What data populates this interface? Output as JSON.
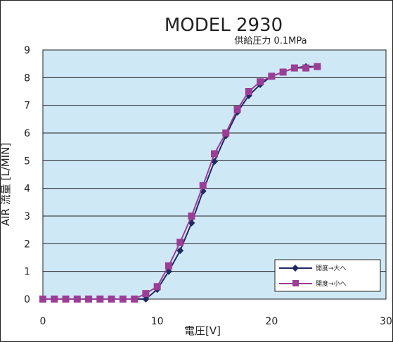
{
  "chart_data": {
    "type": "line",
    "title": "MODEL 2930",
    "subtitle": "供給圧力 0.1MPa",
    "xlabel": "電圧[V]",
    "ylabel": "AIR 流量 [L/MIN]",
    "xlim": [
      0,
      30
    ],
    "ylim": [
      0,
      9
    ],
    "xticks": [
      0,
      10,
      20,
      30
    ],
    "yticks": [
      0,
      1,
      2,
      3,
      4,
      5,
      6,
      7,
      8,
      9
    ],
    "grid": true,
    "legend_position": "bottom-right",
    "colors": {
      "plot_background": "#cfe8f6",
      "grid": "#222222",
      "series1": "#1f2a60",
      "series2": "#9b3d96"
    },
    "series": [
      {
        "name": "開度→大へ",
        "marker": "diamond",
        "x": [
          0,
          1,
          2,
          3,
          4,
          5,
          6,
          7,
          8,
          9,
          10,
          11,
          12,
          13,
          14,
          15,
          16,
          17,
          18,
          19,
          20,
          21,
          22,
          23,
          24
        ],
        "y": [
          0,
          0,
          0,
          0,
          0,
          0,
          0,
          0,
          0,
          0,
          0.35,
          1.0,
          1.75,
          2.75,
          3.9,
          4.97,
          5.9,
          6.75,
          7.35,
          7.75,
          8.05,
          8.2,
          8.35,
          8.4,
          8.4
        ]
      },
      {
        "name": "開度→小へ",
        "marker": "square",
        "x": [
          0,
          1,
          2,
          3,
          4,
          5,
          6,
          7,
          8,
          9,
          10,
          11,
          12,
          13,
          14,
          15,
          16,
          17,
          18,
          19,
          20,
          21,
          22,
          23,
          24
        ],
        "y": [
          0,
          0,
          0,
          0,
          0,
          0,
          0,
          0,
          0,
          0.2,
          0.45,
          1.2,
          2.05,
          3.0,
          4.1,
          5.25,
          6.0,
          6.85,
          7.5,
          7.85,
          8.05,
          8.2,
          8.35,
          8.35,
          8.4
        ]
      }
    ]
  }
}
